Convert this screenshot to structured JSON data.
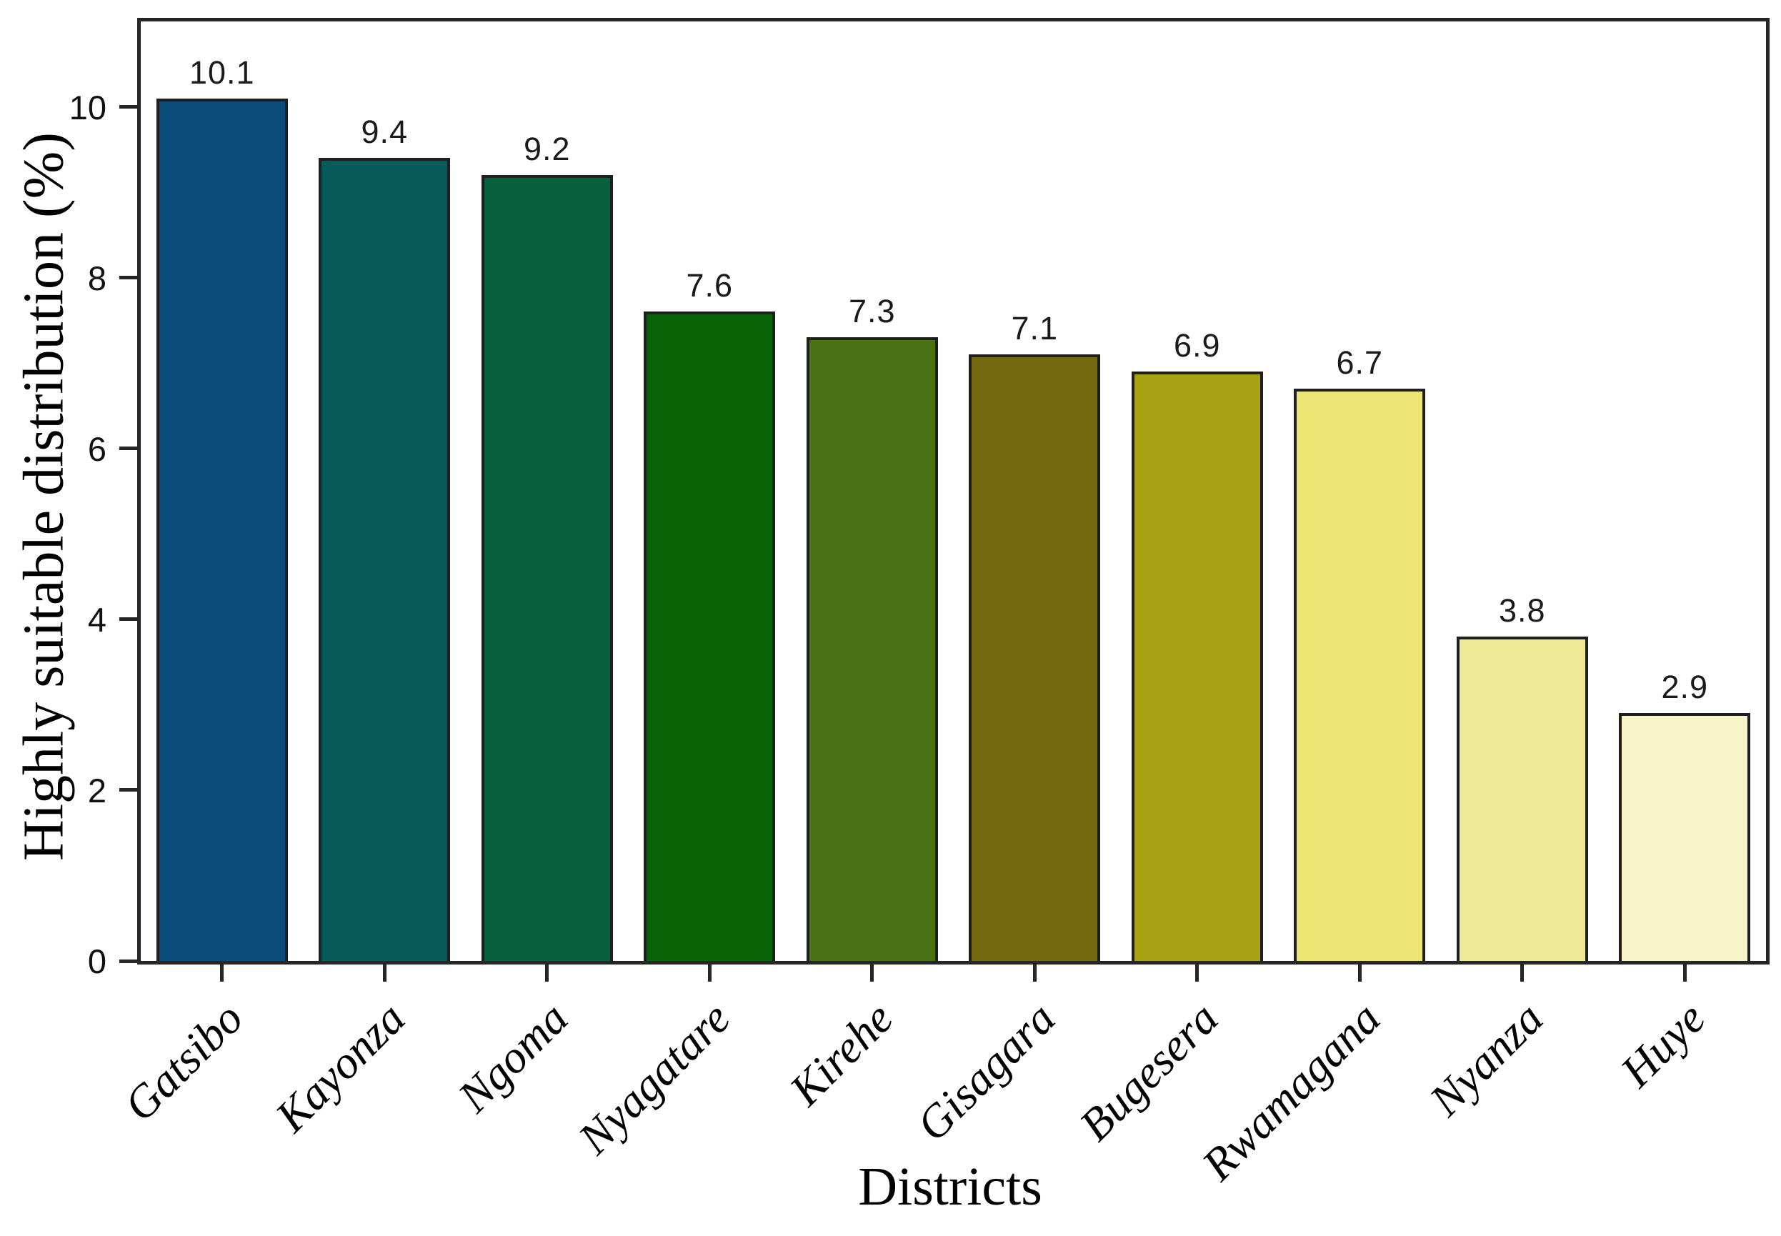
{
  "chart_data": {
    "type": "bar",
    "title": "",
    "xlabel": "Districts",
    "ylabel": "Highly suitable distribution (%)",
    "categories": [
      "Gatsibo",
      "Kayonza",
      "Ngoma",
      "Nyagatare",
      "Kirehe",
      "Gisagara",
      "Bugesera",
      "Rwamagana",
      "Nyanza",
      "Huye"
    ],
    "values": [
      10.1,
      9.4,
      9.2,
      7.6,
      7.3,
      7.1,
      6.9,
      6.7,
      3.8,
      2.9
    ],
    "value_labels": [
      "10.1",
      "9.4",
      "9.2",
      "7.6",
      "7.3",
      "7.1",
      "6.9",
      "6.7",
      "3.8",
      "2.9"
    ],
    "bar_colors": [
      "#0A4B7A",
      "#065A59",
      "#06603E",
      "#076306",
      "#4A7314",
      "#756A11",
      "#A9A215",
      "#ECE572",
      "#F0EA96",
      "#F6F3C6"
    ],
    "bar_border_color": "#1f1f1f",
    "axis_color": "#262626",
    "background_color": "#ffffff",
    "ylim": [
      0,
      11
    ],
    "yticks": [
      0,
      2,
      4,
      6,
      8,
      10
    ],
    "grid": false,
    "legend_position": "none"
  }
}
